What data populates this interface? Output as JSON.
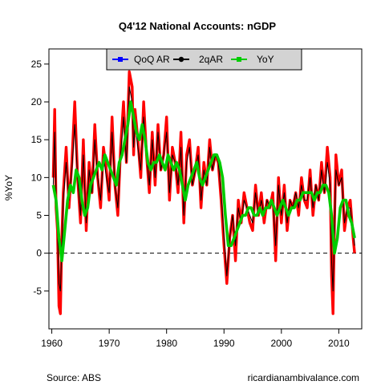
{
  "chart_data": {
    "type": "line",
    "title": "Q4'12 National Accounts: nGDP",
    "xlabel": "",
    "ylabel": "%YoY",
    "xlim": [
      1959.5,
      2014
    ],
    "ylim": [
      -10,
      27
    ],
    "x_ticks": [
      1960,
      1970,
      1980,
      1990,
      2000,
      2010
    ],
    "x_tick_labels": [
      "1960",
      "1970",
      "1980",
      "1990",
      "2000",
      "2010"
    ],
    "y_ticks": [
      -5,
      0,
      5,
      10,
      15,
      20,
      25
    ],
    "y_tick_labels": [
      "-5",
      "0",
      "5",
      "10",
      "15",
      "20",
      "25"
    ],
    "reference_line": {
      "y": 0,
      "style": "dashed"
    },
    "grid": false,
    "legend_position": "top",
    "series": [
      {
        "name": "QoQ AR",
        "color": "#0000ff",
        "x": [
          1960.25,
          1960.5,
          1960.75,
          1961,
          1961.25,
          1961.5,
          1961.75,
          1962,
          1962.5,
          1963,
          1963.5,
          1964,
          1964.5,
          1965,
          1965.5,
          1966,
          1966.5,
          1967,
          1967.5,
          1968,
          1968.5,
          1969,
          1969.5,
          1970,
          1970.5,
          1971,
          1971.5,
          1972,
          1972.5,
          1973,
          1973.5,
          1974,
          1974.25,
          1974.5,
          1975,
          1975.5,
          1976,
          1976.5,
          1977,
          1977.5,
          1978,
          1978.5,
          1979,
          1979.5,
          1980,
          1980.5,
          1981,
          1981.5,
          1982,
          1982.5,
          1983,
          1983.5,
          1984,
          1984.5,
          1985,
          1985.5,
          1986,
          1986.5,
          1987,
          1987.5,
          1988,
          1988.5,
          1989,
          1989.5,
          1990,
          1990.5,
          1991,
          1991.5,
          1992,
          1992.5,
          1993,
          1993.5,
          1994,
          1994.5,
          1995,
          1995.5,
          1996,
          1996.5,
          1997,
          1997.5,
          1998,
          1998.5,
          1999,
          1999.5,
          2000,
          2000.5,
          2001,
          2001.5,
          2002,
          2002.5,
          2003,
          2003.5,
          2004,
          2004.5,
          2005,
          2005.5,
          2006,
          2006.5,
          2007,
          2007.5,
          2008,
          2008.5,
          2008.75,
          2009,
          2009.25,
          2009.5,
          2010,
          2010.5,
          2011,
          2011.5,
          2012,
          2012.5,
          2012.75
        ],
        "values": [
          10,
          19,
          6,
          3,
          -7,
          -8,
          2,
          8,
          14,
          6,
          12,
          20,
          10,
          4,
          15,
          3,
          12,
          8,
          17,
          10,
          6,
          14,
          11,
          7,
          18,
          9,
          5,
          14,
          20,
          12,
          24,
          22,
          13,
          19,
          15,
          10,
          20,
          13,
          8,
          16,
          9,
          17,
          11,
          13,
          18,
          7,
          14,
          12,
          8,
          16,
          4,
          13,
          15,
          9,
          11,
          14,
          6,
          12,
          9,
          15,
          11,
          13,
          12,
          7,
          1,
          -4,
          2,
          5,
          -1,
          7,
          4,
          8,
          6,
          4,
          3,
          9,
          5,
          8,
          4,
          7,
          6,
          8,
          -1,
          10,
          4,
          9,
          3,
          7,
          6,
          8,
          5,
          10,
          7,
          6,
          11,
          5,
          9,
          7,
          12,
          8,
          14,
          10,
          -3,
          -8,
          4,
          13,
          9,
          11,
          3,
          6,
          7,
          2,
          0
        ]
      },
      {
        "name": "2qAR",
        "color": "#000000",
        "x": [
          1960.25,
          1960.5,
          1960.75,
          1961,
          1961.25,
          1961.5,
          1961.75,
          1962,
          1962.5,
          1963,
          1963.5,
          1964,
          1964.5,
          1965,
          1965.5,
          1966,
          1966.5,
          1967,
          1967.5,
          1968,
          1968.5,
          1969,
          1969.5,
          1970,
          1970.5,
          1971,
          1971.5,
          1972,
          1972.5,
          1973,
          1973.5,
          1974,
          1974.25,
          1974.5,
          1975,
          1975.5,
          1976,
          1976.5,
          1977,
          1977.5,
          1978,
          1978.5,
          1979,
          1979.5,
          1980,
          1980.5,
          1981,
          1981.5,
          1982,
          1982.5,
          1983,
          1983.5,
          1984,
          1984.5,
          1985,
          1985.5,
          1986,
          1986.5,
          1987,
          1987.5,
          1988,
          1988.5,
          1989,
          1989.5,
          1990,
          1990.5,
          1991,
          1991.5,
          1992,
          1992.5,
          1993,
          1993.5,
          1994,
          1994.5,
          1995,
          1995.5,
          1996,
          1996.5,
          1997,
          1997.5,
          1998,
          1998.5,
          1999,
          1999.5,
          2000,
          2000.5,
          2001,
          2001.5,
          2002,
          2002.5,
          2003,
          2003.5,
          2004,
          2004.5,
          2005,
          2005.5,
          2006,
          2006.5,
          2007,
          2007.5,
          2008,
          2008.5,
          2008.75,
          2009,
          2009.25,
          2009.5,
          2010,
          2010.5,
          2011,
          2011.5,
          2012,
          2012.5,
          2012.75
        ],
        "values": [
          9,
          16,
          8,
          3,
          -4,
          -5,
          1,
          7,
          12,
          7,
          11,
          17,
          10,
          5,
          13,
          4,
          11,
          8,
          15,
          10,
          7,
          13,
          10,
          8,
          16,
          9,
          6,
          13,
          18,
          12,
          22,
          20,
          14,
          17,
          14,
          11,
          18,
          13,
          9,
          15,
          10,
          16,
          11,
          13,
          16,
          8,
          13,
          12,
          9,
          14,
          5,
          12,
          14,
          9,
          11,
          13,
          7,
          11,
          9,
          14,
          11,
          13,
          12,
          8,
          2,
          -3,
          2,
          5,
          1,
          6,
          4,
          7,
          6,
          5,
          4,
          8,
          5,
          7,
          5,
          7,
          6,
          7,
          1,
          9,
          5,
          8,
          4,
          7,
          6,
          8,
          6,
          9,
          7,
          7,
          10,
          6,
          9,
          7,
          11,
          8,
          12,
          9,
          -1,
          -5,
          3,
          11,
          9,
          10,
          4,
          6,
          6,
          3,
          1
        ]
      },
      {
        "name": "YoY",
        "color": "#00cc00",
        "x": [
          1960.25,
          1960.75,
          1961.25,
          1961.75,
          1962.25,
          1962.75,
          1963.25,
          1963.75,
          1964.25,
          1964.75,
          1965.25,
          1965.75,
          1966.25,
          1966.75,
          1967.25,
          1967.75,
          1968.25,
          1968.75,
          1969.25,
          1969.75,
          1970.25,
          1970.75,
          1971.25,
          1971.75,
          1972.25,
          1972.75,
          1973.25,
          1973.75,
          1974.25,
          1974.75,
          1975.25,
          1975.75,
          1976.25,
          1976.75,
          1977.25,
          1977.75,
          1978.25,
          1978.75,
          1979.25,
          1979.75,
          1980.25,
          1980.75,
          1981.25,
          1981.75,
          1982.25,
          1982.75,
          1983.25,
          1983.75,
          1984.25,
          1984.75,
          1985.25,
          1985.75,
          1986.25,
          1986.75,
          1987.25,
          1987.75,
          1988.25,
          1988.75,
          1989.25,
          1989.75,
          1990.25,
          1990.75,
          1991.25,
          1991.75,
          1992.25,
          1992.75,
          1993.25,
          1993.75,
          1994.25,
          1994.75,
          1995.25,
          1995.75,
          1996.25,
          1996.75,
          1997.25,
          1997.75,
          1998.25,
          1998.75,
          1999.25,
          1999.75,
          2000.25,
          2000.75,
          2001.25,
          2001.75,
          2002.25,
          2002.75,
          2003.25,
          2003.75,
          2004.25,
          2004.75,
          2005.25,
          2005.75,
          2006.25,
          2006.75,
          2007.25,
          2007.75,
          2008.25,
          2008.75,
          2009.25,
          2009.75,
          2010.25,
          2010.75,
          2011.25,
          2011.75,
          2012.25,
          2012.75
        ],
        "values": [
          9,
          7,
          2,
          -1,
          3,
          7,
          9,
          8,
          11,
          10,
          7,
          5,
          6,
          9,
          10,
          11,
          12,
          11,
          13,
          12,
          11,
          10,
          9,
          12,
          13,
          15,
          17,
          20,
          18,
          16,
          15,
          17,
          15,
          12,
          11,
          12,
          12,
          13,
          12,
          11,
          13,
          12,
          11,
          12,
          11,
          9,
          7,
          9,
          10,
          11,
          12,
          10,
          9,
          10,
          11,
          12,
          13,
          13,
          12,
          10,
          5,
          1,
          1,
          2,
          3,
          4,
          5,
          5,
          6,
          6,
          5,
          5,
          6,
          5,
          6,
          6,
          7,
          6,
          5,
          6,
          7,
          6,
          5,
          6,
          6,
          7,
          7,
          8,
          8,
          8,
          8,
          7,
          8,
          8,
          9,
          9,
          8,
          5,
          0,
          2,
          6,
          7,
          7,
          5,
          4,
          2
        ]
      }
    ]
  },
  "legend": {
    "items": [
      {
        "label": "QoQ AR",
        "color": "#0000ff",
        "marker": "square"
      },
      {
        "label": "2qAR",
        "color": "#000000",
        "marker": "circle"
      },
      {
        "label": "YoY",
        "color": "#00cc00",
        "marker": "square"
      }
    ],
    "background": "#d3d3d3"
  },
  "footer": {
    "source": "Source: ABS",
    "site": "ricardianambivalance.com"
  },
  "colors": {
    "qoq_red": "#ff0000",
    "twoq_black": "#000000",
    "yoy_green": "#00cc00"
  }
}
